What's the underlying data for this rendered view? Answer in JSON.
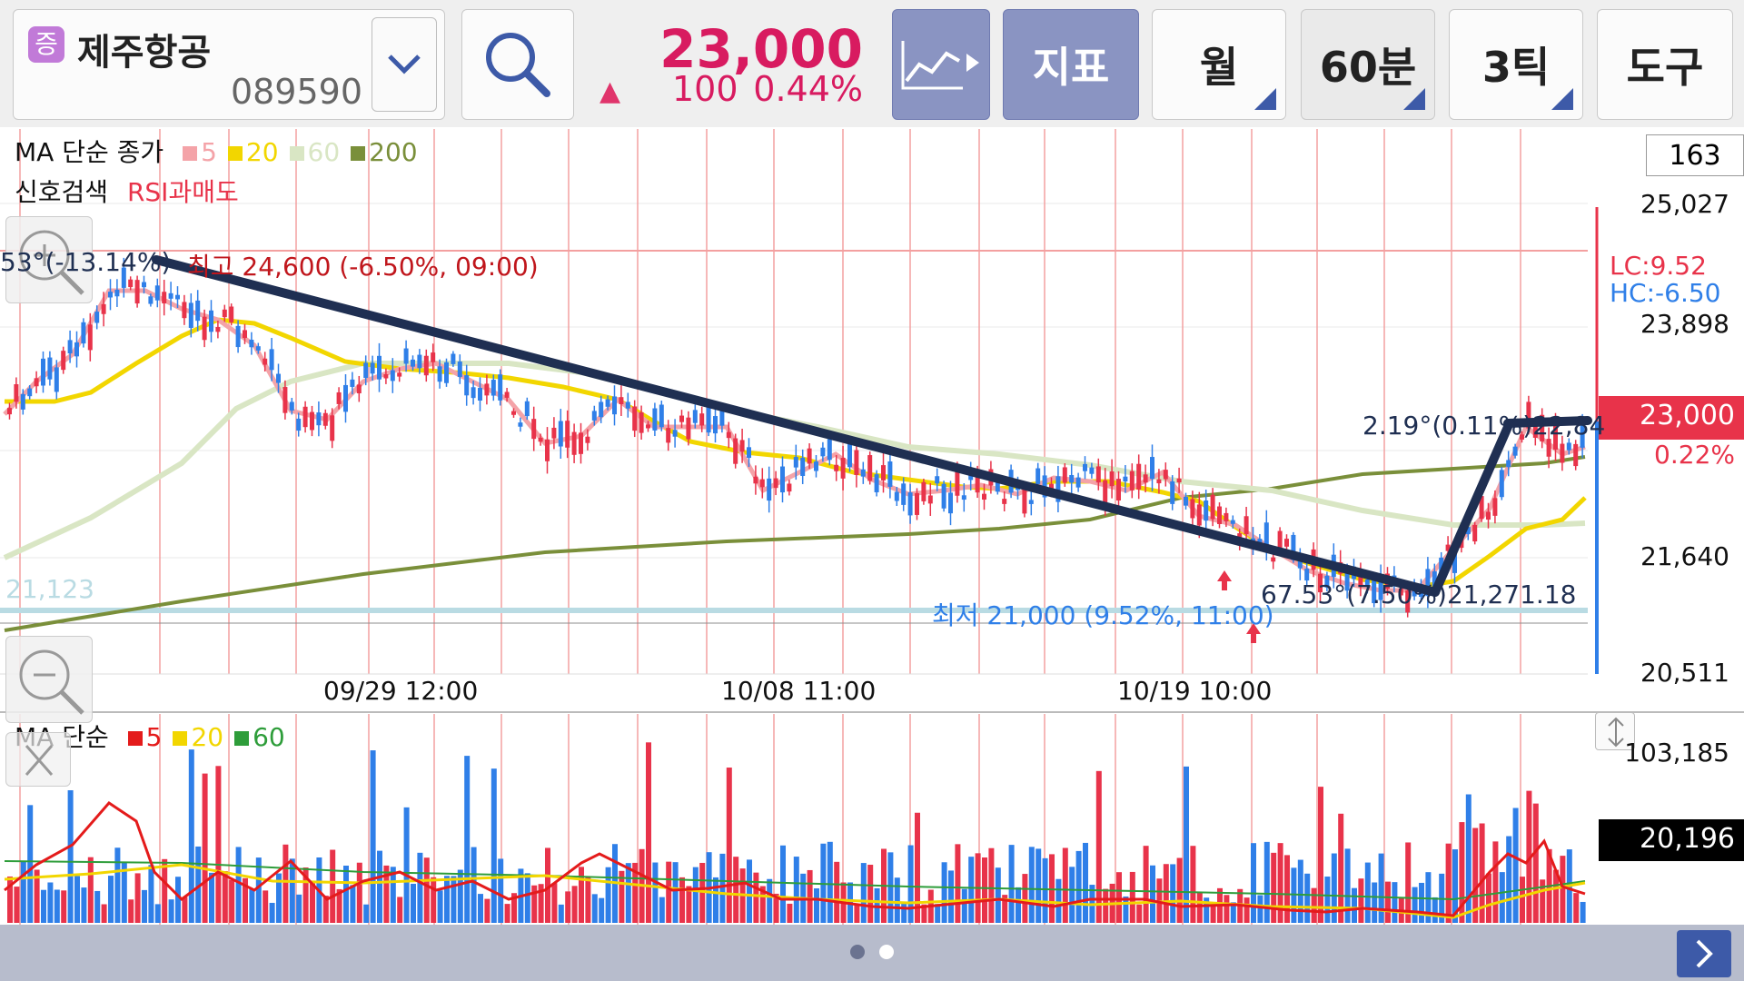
{
  "stock": {
    "badge": "증",
    "name": "제주항공",
    "code": "089590",
    "price": "23,000",
    "change_arrow": "▲",
    "change": "100",
    "change_percent": "0.44%"
  },
  "toolbar": {
    "indicator_label": "지표",
    "month_label": "월",
    "minute_label": "60분",
    "tick_label": "3틱",
    "tools_label": "도구"
  },
  "colors": {
    "accent": "#3d5aa8",
    "up": "#e8334a",
    "down": "#2f7fe8",
    "ma5": "#f4a3a8",
    "ma20": "#f2d600",
    "ma60": "#d9e6c4",
    "ma200": "#7a8f3a",
    "trendline": "#1f2f52"
  },
  "price_chart": {
    "legend_title": "MA 단순 종가",
    "legend_ma": [
      {
        "label": "5",
        "color": "#f4a3a8"
      },
      {
        "label": "20",
        "color": "#f2d600"
      },
      {
        "label": "60",
        "color": "#d9e6c4"
      },
      {
        "label": "200",
        "color": "#7a8f3a"
      }
    ],
    "signal_label": "신호검색",
    "signal_value": "RSI과매도",
    "count_box": "163",
    "y_labels": [
      "25,027",
      "23,898",
      "21,640",
      "20,511"
    ],
    "current_price_tag": "23,000",
    "current_pct": "0.22%",
    "lc": "LC:9.52",
    "hc": "HC:-6.50",
    "high_annotation": "최고 24,600 (-6.50%, 09:00)",
    "low_annotation": "최저 21,000 (9.52%, 11:00)",
    "angle_left": "53°(-13.14%)",
    "angle_mid": "67.53°(7.50%)21,271.18",
    "angle_right": "2.19°(0.11%)22,84",
    "hline_label": "21,123",
    "x_labels": [
      "09/29 12:00",
      "10/08 11:00",
      "10/19 10:00"
    ]
  },
  "volume_chart": {
    "legend_title": "MA 단순",
    "legend_ma": [
      {
        "label": "5",
        "color": "#e41b1b"
      },
      {
        "label": "20",
        "color": "#f2d600"
      },
      {
        "label": "60",
        "color": "#2e9d3a"
      }
    ],
    "y_top": "103,185",
    "y_current": "20,196"
  }
}
